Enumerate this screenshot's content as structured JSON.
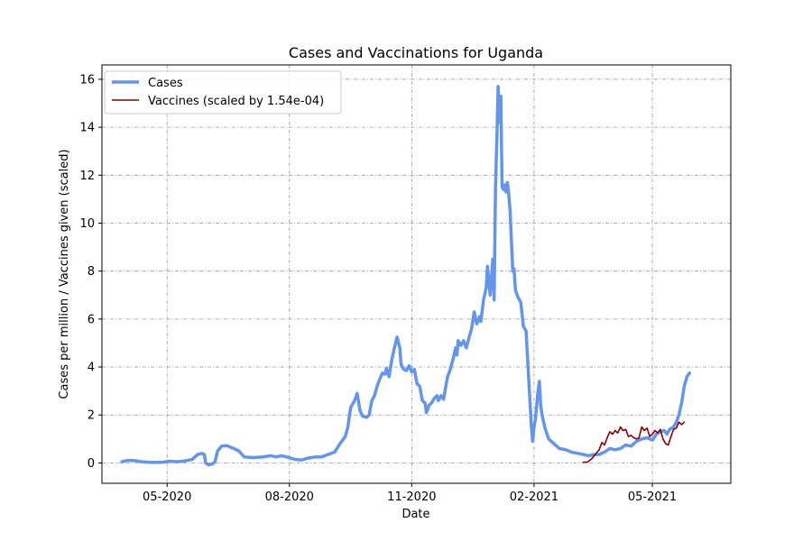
{
  "chart_data": {
    "type": "line",
    "title": "Cases and Vaccinations for Uganda",
    "xlabel": "Date",
    "ylabel": "Cases per million / Vaccines given (scaled)",
    "x_axis_type": "date",
    "xlim": [
      "2020-03-13",
      "2021-06-29"
    ],
    "ylim": [
      -0.85,
      16.6
    ],
    "x_ticks": [
      {
        "date": "2020-05-01",
        "label": "05-2020"
      },
      {
        "date": "2020-08-01",
        "label": "08-2020"
      },
      {
        "date": "2020-11-01",
        "label": "11-2020"
      },
      {
        "date": "2021-02-01",
        "label": "02-2021"
      },
      {
        "date": "2021-05-01",
        "label": "05-2021"
      }
    ],
    "y_ticks": [
      0,
      2,
      4,
      6,
      8,
      10,
      12,
      14,
      16
    ],
    "grid": true,
    "grid_style": "dash-dot",
    "legend_position": "top-left",
    "series": [
      {
        "name": "Cases",
        "color": "#6495ED",
        "line_width": 3.5,
        "points": [
          [
            "2020-03-28",
            0.05
          ],
          [
            "2020-04-01",
            0.1
          ],
          [
            "2020-04-06",
            0.1
          ],
          [
            "2020-04-12",
            0.05
          ],
          [
            "2020-04-20",
            0.02
          ],
          [
            "2020-04-28",
            0.03
          ],
          [
            "2020-05-03",
            0.07
          ],
          [
            "2020-05-08",
            0.05
          ],
          [
            "2020-05-14",
            0.08
          ],
          [
            "2020-05-20",
            0.15
          ],
          [
            "2020-05-24",
            0.35
          ],
          [
            "2020-05-27",
            0.4
          ],
          [
            "2020-05-29",
            0.35
          ],
          [
            "2020-05-30",
            0.0
          ],
          [
            "2020-06-01",
            -0.08
          ],
          [
            "2020-06-04",
            -0.05
          ],
          [
            "2020-06-06",
            0.05
          ],
          [
            "2020-06-08",
            0.5
          ],
          [
            "2020-06-11",
            0.7
          ],
          [
            "2020-06-15",
            0.72
          ],
          [
            "2020-06-20",
            0.6
          ],
          [
            "2020-06-24",
            0.5
          ],
          [
            "2020-06-28",
            0.25
          ],
          [
            "2020-07-05",
            0.22
          ],
          [
            "2020-07-12",
            0.25
          ],
          [
            "2020-07-18",
            0.3
          ],
          [
            "2020-07-22",
            0.25
          ],
          [
            "2020-07-26",
            0.3
          ],
          [
            "2020-07-30",
            0.25
          ],
          [
            "2020-08-05",
            0.15
          ],
          [
            "2020-08-10",
            0.12
          ],
          [
            "2020-08-15",
            0.2
          ],
          [
            "2020-08-20",
            0.25
          ],
          [
            "2020-08-25",
            0.25
          ],
          [
            "2020-08-30",
            0.35
          ],
          [
            "2020-09-04",
            0.45
          ],
          [
            "2020-09-08",
            0.8
          ],
          [
            "2020-09-12",
            1.1
          ],
          [
            "2020-09-14",
            1.5
          ],
          [
            "2020-09-16",
            2.3
          ],
          [
            "2020-09-19",
            2.6
          ],
          [
            "2020-09-21",
            2.9
          ],
          [
            "2020-09-23",
            2.2
          ],
          [
            "2020-09-25",
            1.95
          ],
          [
            "2020-09-28",
            1.9
          ],
          [
            "2020-09-30",
            2.0
          ],
          [
            "2020-10-02",
            2.6
          ],
          [
            "2020-10-04",
            2.8
          ],
          [
            "2020-10-06",
            3.2
          ],
          [
            "2020-10-08",
            3.5
          ],
          [
            "2020-10-10",
            3.75
          ],
          [
            "2020-10-12",
            3.7
          ],
          [
            "2020-10-13",
            3.95
          ],
          [
            "2020-10-15",
            3.6
          ],
          [
            "2020-10-17",
            4.3
          ],
          [
            "2020-10-19",
            4.8
          ],
          [
            "2020-10-21",
            5.25
          ],
          [
            "2020-10-23",
            4.8
          ],
          [
            "2020-10-24",
            4.1
          ],
          [
            "2020-10-26",
            3.9
          ],
          [
            "2020-10-28",
            3.85
          ],
          [
            "2020-10-30",
            4.05
          ],
          [
            "2020-11-01",
            3.8
          ],
          [
            "2020-11-03",
            3.9
          ],
          [
            "2020-11-05",
            3.3
          ],
          [
            "2020-11-07",
            3.2
          ],
          [
            "2020-11-09",
            2.6
          ],
          [
            "2020-11-11",
            2.5
          ],
          [
            "2020-11-12",
            2.1
          ],
          [
            "2020-11-14",
            2.4
          ],
          [
            "2020-11-16",
            2.5
          ],
          [
            "2020-11-18",
            2.7
          ],
          [
            "2020-11-20",
            2.8
          ],
          [
            "2020-11-21",
            2.6
          ],
          [
            "2020-11-23",
            2.8
          ],
          [
            "2020-11-25",
            2.65
          ],
          [
            "2020-11-26",
            3.0
          ],
          [
            "2020-11-28",
            3.6
          ],
          [
            "2020-11-30",
            3.9
          ],
          [
            "2020-12-02",
            4.3
          ],
          [
            "2020-12-04",
            4.8
          ],
          [
            "2020-12-05",
            4.5
          ],
          [
            "2020-12-06",
            5.1
          ],
          [
            "2020-12-08",
            4.9
          ],
          [
            "2020-12-10",
            5.1
          ],
          [
            "2020-12-12",
            4.8
          ],
          [
            "2020-12-14",
            5.2
          ],
          [
            "2020-12-16",
            5.6
          ],
          [
            "2020-12-18",
            6.3
          ],
          [
            "2020-12-20",
            5.8
          ],
          [
            "2020-12-22",
            6.1
          ],
          [
            "2020-12-23",
            5.9
          ],
          [
            "2020-12-25",
            6.8
          ],
          [
            "2020-12-27",
            7.3
          ],
          [
            "2020-12-28",
            8.2
          ],
          [
            "2020-12-29",
            7.6
          ],
          [
            "2020-12-30",
            7.0
          ],
          [
            "2021-01-01",
            8.5
          ],
          [
            "2021-01-02",
            6.8
          ],
          [
            "2021-01-03",
            11.5
          ],
          [
            "2021-01-04",
            13.5
          ],
          [
            "2021-01-05",
            15.7
          ],
          [
            "2021-01-06",
            14.2
          ],
          [
            "2021-01-07",
            15.3
          ],
          [
            "2021-01-08",
            11.5
          ],
          [
            "2021-01-09",
            11.4
          ],
          [
            "2021-01-10",
            11.6
          ],
          [
            "2021-01-11",
            11.3
          ],
          [
            "2021-01-12",
            11.7
          ],
          [
            "2021-01-13",
            11.2
          ],
          [
            "2021-01-14",
            10.5
          ],
          [
            "2021-01-16",
            8.0
          ],
          [
            "2021-01-17",
            8.1
          ],
          [
            "2021-01-18",
            7.2
          ],
          [
            "2021-01-20",
            6.9
          ],
          [
            "2021-01-22",
            6.7
          ],
          [
            "2021-01-24",
            5.7
          ],
          [
            "2021-01-26",
            5.5
          ],
          [
            "2021-01-28",
            3.5
          ],
          [
            "2021-01-29",
            2.5
          ],
          [
            "2021-01-30",
            1.5
          ],
          [
            "2021-01-31",
            0.9
          ],
          [
            "2021-02-01",
            1.5
          ],
          [
            "2021-02-02",
            1.8
          ],
          [
            "2021-02-03",
            2.4
          ],
          [
            "2021-02-04",
            3.0
          ],
          [
            "2021-02-05",
            3.4
          ],
          [
            "2021-02-06",
            2.4
          ],
          [
            "2021-02-07",
            2.0
          ],
          [
            "2021-02-09",
            1.5
          ],
          [
            "2021-02-12",
            1.0
          ],
          [
            "2021-02-16",
            0.8
          ],
          [
            "2021-02-20",
            0.6
          ],
          [
            "2021-02-25",
            0.55
          ],
          [
            "2021-03-01",
            0.45
          ],
          [
            "2021-03-06",
            0.4
          ],
          [
            "2021-03-10",
            0.35
          ],
          [
            "2021-03-14",
            0.3
          ],
          [
            "2021-03-18",
            0.35
          ],
          [
            "2021-03-22",
            0.35
          ],
          [
            "2021-03-26",
            0.45
          ],
          [
            "2021-03-30",
            0.6
          ],
          [
            "2021-04-03",
            0.55
          ],
          [
            "2021-04-07",
            0.6
          ],
          [
            "2021-04-11",
            0.75
          ],
          [
            "2021-04-15",
            0.7
          ],
          [
            "2021-04-19",
            0.9
          ],
          [
            "2021-04-23",
            1.0
          ],
          [
            "2021-04-27",
            1.05
          ],
          [
            "2021-05-01",
            0.95
          ],
          [
            "2021-05-04",
            1.2
          ],
          [
            "2021-05-07",
            1.3
          ],
          [
            "2021-05-10",
            1.35
          ],
          [
            "2021-05-12",
            1.2
          ],
          [
            "2021-05-14",
            1.4
          ],
          [
            "2021-05-17",
            1.5
          ],
          [
            "2021-05-19",
            1.7
          ],
          [
            "2021-05-21",
            2.0
          ],
          [
            "2021-05-23",
            2.5
          ],
          [
            "2021-05-25",
            3.2
          ],
          [
            "2021-05-27",
            3.6
          ],
          [
            "2021-05-29",
            3.75
          ]
        ]
      },
      {
        "name": "Vaccines (scaled by 1.54e-04)",
        "color": "#8B0000",
        "line_width": 1.6,
        "points": [
          [
            "2021-03-10",
            0.03
          ],
          [
            "2021-03-13",
            0.03
          ],
          [
            "2021-03-16",
            0.15
          ],
          [
            "2021-03-19",
            0.35
          ],
          [
            "2021-03-22",
            0.55
          ],
          [
            "2021-03-24",
            0.85
          ],
          [
            "2021-03-26",
            0.75
          ],
          [
            "2021-03-28",
            1.05
          ],
          [
            "2021-03-30",
            1.3
          ],
          [
            "2021-04-01",
            1.2
          ],
          [
            "2021-04-03",
            1.35
          ],
          [
            "2021-04-05",
            1.25
          ],
          [
            "2021-04-07",
            1.5
          ],
          [
            "2021-04-09",
            1.35
          ],
          [
            "2021-04-11",
            1.4
          ],
          [
            "2021-04-13",
            1.1
          ],
          [
            "2021-04-15",
            1.15
          ],
          [
            "2021-04-17",
            1.05
          ],
          [
            "2021-04-19",
            1.0
          ],
          [
            "2021-04-21",
            1.05
          ],
          [
            "2021-04-23",
            1.5
          ],
          [
            "2021-04-25",
            1.35
          ],
          [
            "2021-04-27",
            1.45
          ],
          [
            "2021-04-29",
            1.1
          ],
          [
            "2021-05-01",
            1.2
          ],
          [
            "2021-05-03",
            1.35
          ],
          [
            "2021-05-05",
            1.25
          ],
          [
            "2021-05-07",
            1.4
          ],
          [
            "2021-05-09",
            1.0
          ],
          [
            "2021-05-11",
            0.8
          ],
          [
            "2021-05-13",
            0.75
          ],
          [
            "2021-05-15",
            1.1
          ],
          [
            "2021-05-17",
            1.4
          ],
          [
            "2021-05-19",
            1.45
          ],
          [
            "2021-05-21",
            1.7
          ],
          [
            "2021-05-23",
            1.6
          ],
          [
            "2021-05-25",
            1.7
          ]
        ]
      }
    ]
  }
}
